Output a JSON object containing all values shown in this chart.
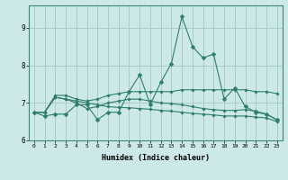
{
  "xlabel": "Humidex (Indice chaleur)",
  "background_color": "#cce8e8",
  "grid_color": "#aacccc",
  "line_color": "#2e7d6e",
  "xlim": [
    -0.5,
    23.5
  ],
  "ylim": [
    6.0,
    9.6
  ],
  "yticks": [
    6,
    7,
    8,
    9
  ],
  "xticks": [
    0,
    1,
    2,
    3,
    4,
    5,
    6,
    7,
    8,
    9,
    10,
    11,
    12,
    13,
    14,
    15,
    16,
    17,
    18,
    19,
    20,
    21,
    22,
    23
  ],
  "series": [
    [
      6.75,
      6.65,
      6.7,
      6.7,
      6.95,
      6.95,
      6.55,
      6.75,
      6.75,
      7.3,
      7.75,
      6.95,
      7.55,
      8.05,
      9.3,
      8.5,
      8.2,
      8.3,
      7.1,
      7.4,
      6.9,
      6.75,
      6.7,
      6.55
    ],
    [
      6.75,
      6.75,
      7.2,
      7.2,
      7.1,
      7.05,
      7.1,
      7.2,
      7.25,
      7.3,
      7.3,
      7.3,
      7.3,
      7.3,
      7.35,
      7.35,
      7.35,
      7.35,
      7.35,
      7.35,
      7.35,
      7.3,
      7.3,
      7.25
    ],
    [
      6.75,
      6.75,
      7.15,
      7.1,
      7.0,
      6.85,
      6.9,
      7.0,
      7.05,
      7.1,
      7.1,
      7.05,
      7.0,
      6.98,
      6.95,
      6.9,
      6.85,
      6.82,
      6.8,
      6.8,
      6.82,
      6.78,
      6.7,
      6.55
    ],
    [
      6.75,
      6.75,
      7.15,
      7.1,
      7.05,
      7.0,
      6.95,
      6.9,
      6.88,
      6.87,
      6.85,
      6.83,
      6.8,
      6.78,
      6.75,
      6.72,
      6.7,
      6.68,
      6.65,
      6.65,
      6.65,
      6.62,
      6.6,
      6.5
    ]
  ]
}
